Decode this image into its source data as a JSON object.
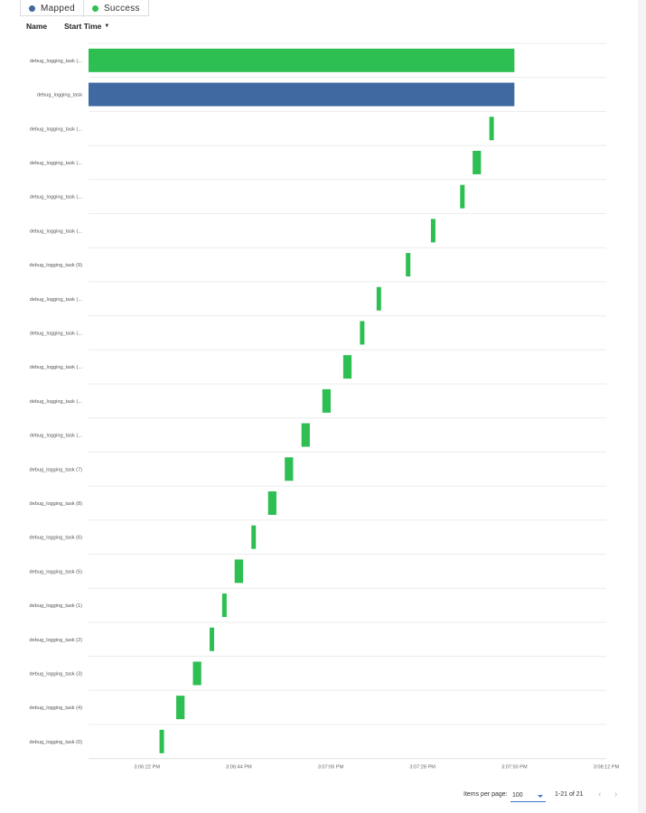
{
  "legend": [
    {
      "label": "Mapped",
      "color": "#4068a1"
    },
    {
      "label": "Success",
      "color": "#2ebf52"
    }
  ],
  "columns": {
    "name": "Name",
    "start_time": "Start Time"
  },
  "chart_data": {
    "type": "gantt",
    "x_unit": "time",
    "xlim": [
      "3:06:08 PM",
      "3:08:12 PM"
    ],
    "x_ticks": [
      "3:06:22 PM",
      "3:06:44 PM",
      "3:07:06 PM",
      "3:07:28 PM",
      "3:07:50 PM",
      "3:08:12 PM"
    ],
    "rows": [
      {
        "name": "debug_logging_task (...",
        "state": "Success",
        "start": "3:06:08 PM",
        "end": "3:07:50 PM"
      },
      {
        "name": "debug_logging_task",
        "state": "Mapped",
        "start": "3:06:08 PM",
        "end": "3:07:50 PM"
      },
      {
        "name": "debug_logging_task (...",
        "state": "Success",
        "start": "3:07:44 PM",
        "end": "3:07:45 PM"
      },
      {
        "name": "debug_logging_task (...",
        "state": "Success",
        "start": "3:07:40 PM",
        "end": "3:07:42 PM"
      },
      {
        "name": "debug_logging_task (...",
        "state": "Success",
        "start": "3:07:37 PM",
        "end": "3:07:38 PM"
      },
      {
        "name": "debug_logging_task (...",
        "state": "Success",
        "start": "3:07:30 PM",
        "end": "3:07:31 PM"
      },
      {
        "name": "debug_logging_task (9)",
        "state": "Success",
        "start": "3:07:24 PM",
        "end": "3:07:25 PM"
      },
      {
        "name": "debug_logging_task (...",
        "state": "Success",
        "start": "3:07:17 PM",
        "end": "3:07:18 PM"
      },
      {
        "name": "debug_logging_task (...",
        "state": "Success",
        "start": "3:07:13 PM",
        "end": "3:07:14 PM"
      },
      {
        "name": "debug_logging_task (...",
        "state": "Success",
        "start": "3:07:09 PM",
        "end": "3:07:11 PM"
      },
      {
        "name": "debug_logging_task (...",
        "state": "Success",
        "start": "3:07:04 PM",
        "end": "3:07:06 PM"
      },
      {
        "name": "debug_logging_task (...",
        "state": "Success",
        "start": "3:06:59 PM",
        "end": "3:07:01 PM"
      },
      {
        "name": "debug_logging_task (7)",
        "state": "Success",
        "start": "3:06:55 PM",
        "end": "3:06:57 PM"
      },
      {
        "name": "debug_logging_task (8)",
        "state": "Success",
        "start": "3:06:51 PM",
        "end": "3:06:53 PM"
      },
      {
        "name": "debug_logging_task (6)",
        "state": "Success",
        "start": "3:06:47 PM",
        "end": "3:06:48 PM"
      },
      {
        "name": "debug_logging_task (5)",
        "state": "Success",
        "start": "3:06:43 PM",
        "end": "3:06:45 PM"
      },
      {
        "name": "debug_logging_task (1)",
        "state": "Success",
        "start": "3:06:40 PM",
        "end": "3:06:41 PM"
      },
      {
        "name": "debug_logging_task (2)",
        "state": "Success",
        "start": "3:06:37 PM",
        "end": "3:06:38 PM"
      },
      {
        "name": "debug_logging_task (3)",
        "state": "Success",
        "start": "3:06:33 PM",
        "end": "3:06:35 PM"
      },
      {
        "name": "debug_logging_task (4)",
        "state": "Success",
        "start": "3:06:29 PM",
        "end": "3:06:31 PM"
      },
      {
        "name": "debug_logging_task (0)",
        "state": "Success",
        "start": "3:06:25 PM",
        "end": "3:06:26 PM"
      }
    ]
  },
  "pagination": {
    "items_per_page_label": "Items per page:",
    "items_per_page": "100",
    "range": "1-21 of 21",
    "prev_icon": "chevron-left-icon",
    "next_icon": "chevron-right-icon"
  }
}
